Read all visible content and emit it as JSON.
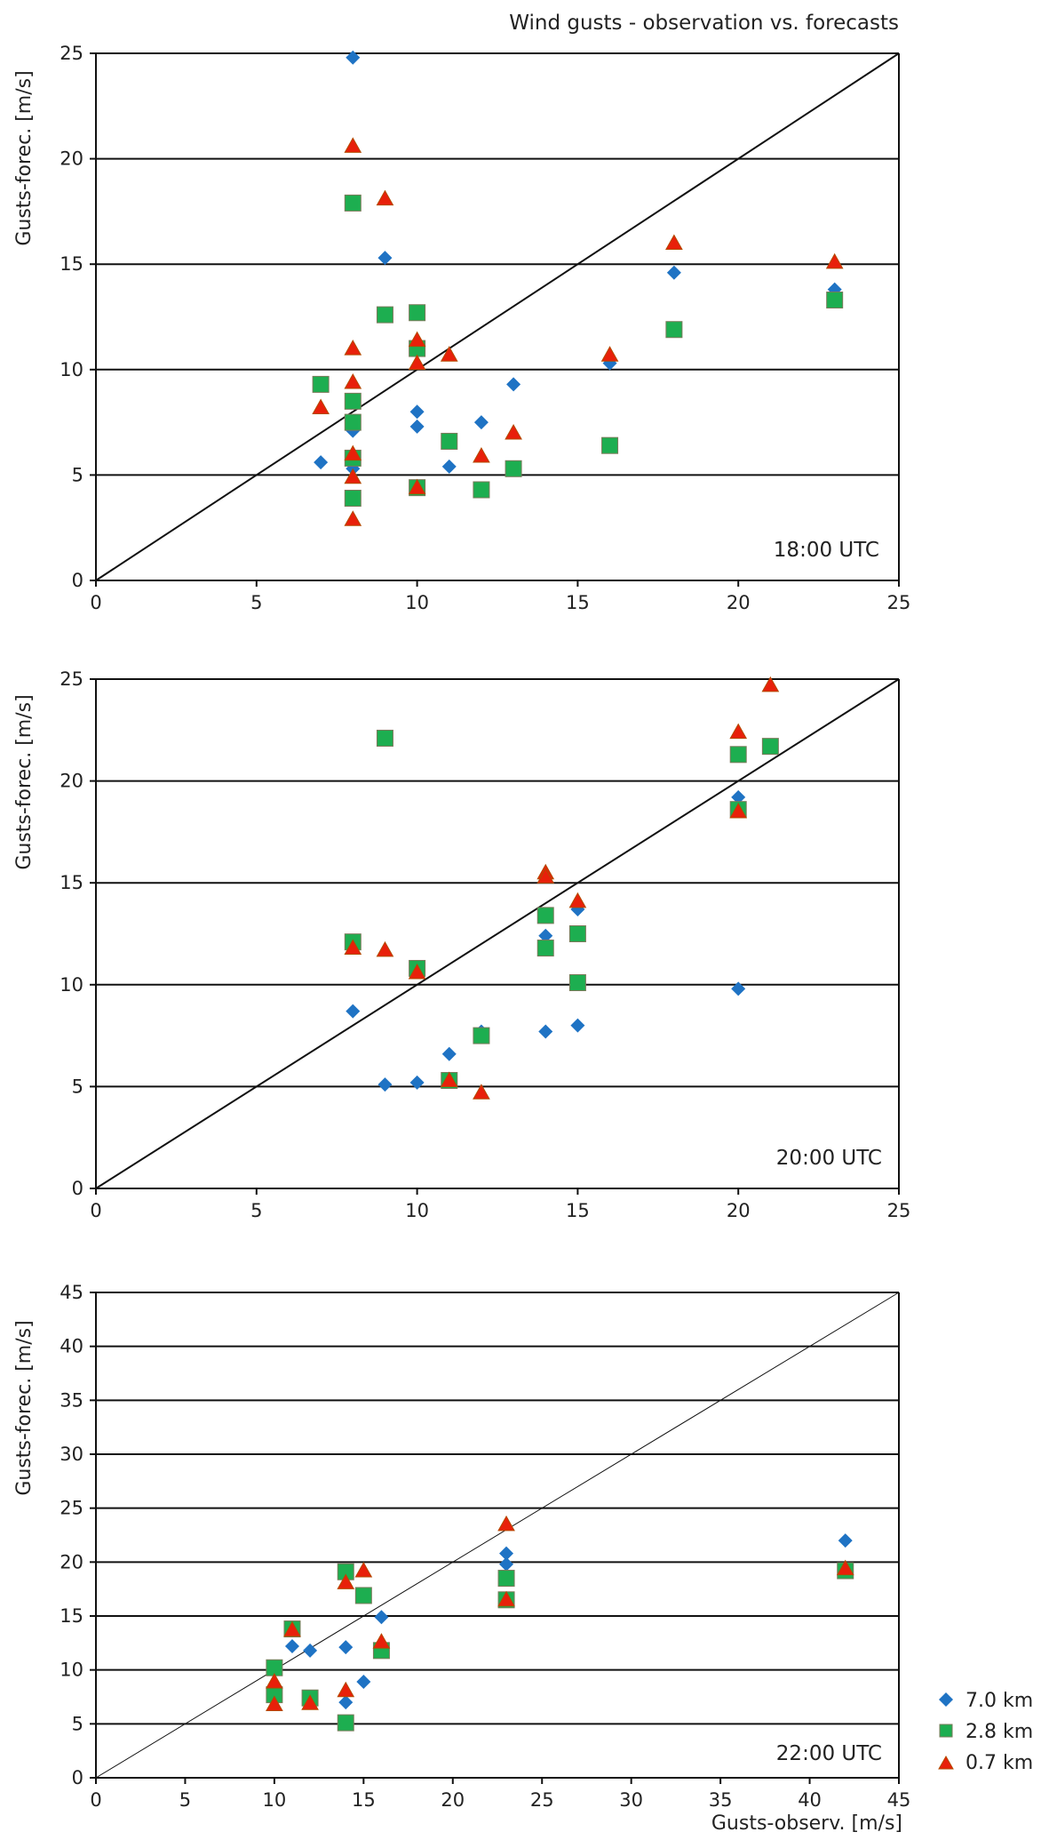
{
  "title": "Wind gusts - observation vs. forecasts",
  "legend": [
    {
      "name": "7.0 km",
      "color": "#1F73C4",
      "marker": "diamond"
    },
    {
      "name": "2.8 km",
      "color": "#1DAE50",
      "marker": "square"
    },
    {
      "name": "0.7 km",
      "color": "#E8200A",
      "marker": "triangle"
    }
  ],
  "chart_data": [
    {
      "type": "scatter",
      "label": "18:00 UTC",
      "xlabel": "",
      "ylabel": "Gusts-forec. [m/s]",
      "xlim": [
        0,
        25
      ],
      "ylim": [
        0,
        25
      ],
      "xticks": [
        0,
        5,
        10,
        15,
        20,
        25
      ],
      "yticks": [
        0,
        5,
        10,
        15,
        20,
        25
      ],
      "grid": "horizontal",
      "reference_line": "y = x",
      "series": [
        {
          "name": "7.0 km",
          "points": [
            [
              8,
              24.8
            ],
            [
              9,
              15.3
            ],
            [
              18,
              14.6
            ],
            [
              23,
              13.8
            ],
            [
              16,
              10.3
            ],
            [
              13,
              9.3
            ],
            [
              10,
              8.0
            ],
            [
              8,
              7.1
            ],
            [
              10,
              7.3
            ],
            [
              12,
              7.5
            ],
            [
              7,
              5.6
            ],
            [
              11,
              5.4
            ],
            [
              8,
              5.3
            ]
          ]
        },
        {
          "name": "2.8 km",
          "points": [
            [
              8,
              17.9
            ],
            [
              10,
              12.7
            ],
            [
              9,
              12.6
            ],
            [
              10,
              11.0
            ],
            [
              7,
              9.3
            ],
            [
              8,
              8.5
            ],
            [
              8,
              7.5
            ],
            [
              11,
              6.6
            ],
            [
              16,
              6.4
            ],
            [
              8,
              5.8
            ],
            [
              13,
              5.3
            ],
            [
              10,
              4.4
            ],
            [
              12,
              4.3
            ],
            [
              8,
              3.9
            ],
            [
              18,
              11.9
            ],
            [
              23,
              13.3
            ]
          ]
        },
        {
          "name": "0.7 km",
          "points": [
            [
              8,
              20.6
            ],
            [
              9,
              18.1
            ],
            [
              18,
              16.0
            ],
            [
              23,
              15.1
            ],
            [
              8,
              11.0
            ],
            [
              10,
              11.4
            ],
            [
              11,
              10.7
            ],
            [
              16,
              10.7
            ],
            [
              10,
              10.3
            ],
            [
              8,
              9.4
            ],
            [
              7,
              8.2
            ],
            [
              13,
              7.0
            ],
            [
              8,
              6.0
            ],
            [
              12,
              5.9
            ],
            [
              8,
              4.9
            ],
            [
              10,
              4.4
            ],
            [
              8,
              2.9
            ]
          ]
        }
      ]
    },
    {
      "type": "scatter",
      "label": "20:00 UTC",
      "xlabel": "",
      "ylabel": "Gusts-forec. [m/s]",
      "xlim": [
        0,
        25
      ],
      "ylim": [
        0,
        25
      ],
      "xticks": [
        0,
        5,
        10,
        15,
        20,
        25
      ],
      "yticks": [
        0,
        5,
        10,
        15,
        20,
        25
      ],
      "grid": "horizontal",
      "reference_line": "y = x",
      "series": [
        {
          "name": "7.0 km",
          "points": [
            [
              20,
              19.2
            ],
            [
              15,
              13.7
            ],
            [
              14,
              12.4
            ],
            [
              8,
              8.7
            ],
            [
              12,
              7.7
            ],
            [
              14,
              7.7
            ],
            [
              15,
              8.0
            ],
            [
              11,
              6.6
            ],
            [
              9,
              5.1
            ],
            [
              10,
              5.2
            ],
            [
              20,
              9.8
            ]
          ]
        },
        {
          "name": "2.8 km",
          "points": [
            [
              9,
              22.1
            ],
            [
              20,
              21.3
            ],
            [
              21,
              21.7
            ],
            [
              20,
              18.6
            ],
            [
              14,
              13.4
            ],
            [
              15,
              12.5
            ],
            [
              8,
              12.1
            ],
            [
              14,
              11.8
            ],
            [
              10,
              10.8
            ],
            [
              15,
              10.1
            ],
            [
              12,
              7.5
            ],
            [
              11,
              5.3
            ]
          ]
        },
        {
          "name": "0.7 km",
          "points": [
            [
              21,
              24.7
            ],
            [
              20,
              22.4
            ],
            [
              20,
              18.5
            ],
            [
              14,
              15.5
            ],
            [
              14,
              15.3
            ],
            [
              15,
              14.1
            ],
            [
              8,
              11.8
            ],
            [
              9,
              11.7
            ],
            [
              10,
              10.6
            ],
            [
              11,
              5.3
            ],
            [
              12,
              4.7
            ]
          ]
        }
      ]
    },
    {
      "type": "scatter",
      "label": "22:00 UTC",
      "xlabel": "Gusts-observ. [m/s]",
      "ylabel": "Gusts-forec. [m/s]",
      "xlim": [
        0,
        45
      ],
      "ylim": [
        0,
        45
      ],
      "xticks": [
        0,
        5,
        10,
        15,
        20,
        25,
        30,
        35,
        40,
        45
      ],
      "yticks": [
        0,
        5,
        10,
        15,
        20,
        25,
        30,
        35,
        40,
        45
      ],
      "grid": "horizontal",
      "reference_line": "y = x",
      "series": [
        {
          "name": "7.0 km",
          "points": [
            [
              42,
              22.0
            ],
            [
              23,
              20.8
            ],
            [
              23,
              19.8
            ],
            [
              16,
              14.9
            ],
            [
              11,
              12.2
            ],
            [
              12,
              11.8
            ],
            [
              14,
              12.1
            ],
            [
              15,
              8.9
            ],
            [
              14,
              7.0
            ]
          ]
        },
        {
          "name": "2.8 km",
          "points": [
            [
              14,
              19.1
            ],
            [
              15,
              16.9
            ],
            [
              23,
              18.5
            ],
            [
              23,
              16.5
            ],
            [
              11,
              13.8
            ],
            [
              16,
              11.8
            ],
            [
              10,
              10.2
            ],
            [
              10,
              7.7
            ],
            [
              12,
              7.4
            ],
            [
              14,
              5.1
            ],
            [
              42,
              19.2
            ]
          ]
        },
        {
          "name": "0.7 km",
          "points": [
            [
              23,
              23.5
            ],
            [
              15,
              19.2
            ],
            [
              14,
              18.1
            ],
            [
              42,
              19.4
            ],
            [
              23,
              16.5
            ],
            [
              11,
              13.7
            ],
            [
              16,
              12.6
            ],
            [
              10,
              8.9
            ],
            [
              14,
              8.1
            ],
            [
              10,
              6.8
            ],
            [
              12,
              6.9
            ]
          ]
        }
      ]
    }
  ]
}
